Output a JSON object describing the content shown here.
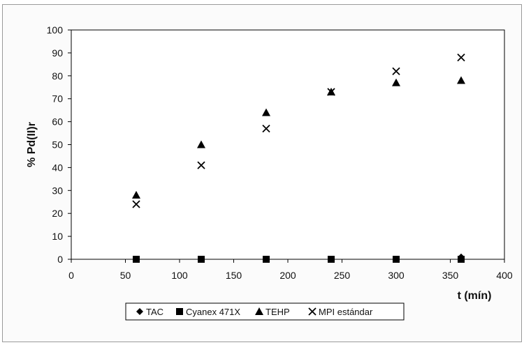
{
  "chart_data": {
    "type": "scatter",
    "title": "",
    "xlabel": "t (mín)",
    "ylabel": "% Pd(II)r",
    "xlim": [
      0,
      400
    ],
    "ylim": [
      0,
      100
    ],
    "xticks": [
      "0",
      "50",
      "100",
      "150",
      "200",
      "250",
      "300",
      "350",
      "400"
    ],
    "yticks": [
      "0",
      "10",
      "20",
      "30",
      "40",
      "50",
      "60",
      "70",
      "80",
      "90",
      "100"
    ],
    "grid": false,
    "legend_position": "bottom",
    "series": [
      {
        "name": "TAC",
        "marker": "diamond",
        "color": "#000000",
        "x": [
          60,
          120,
          180,
          240,
          300,
          360
        ],
        "y": [
          0,
          0,
          0,
          0,
          0,
          1
        ]
      },
      {
        "name": "Cyanex 471X",
        "marker": "square",
        "color": "#000000",
        "x": [
          60,
          120,
          180,
          240,
          300,
          360
        ],
        "y": [
          0,
          0,
          0,
          0,
          0,
          0
        ]
      },
      {
        "name": "TEHP",
        "marker": "triangle",
        "color": "#000000",
        "x": [
          60,
          120,
          180,
          240,
          300,
          360
        ],
        "y": [
          28,
          50,
          64,
          73,
          77,
          78
        ]
      },
      {
        "name": "MPI estándar",
        "marker": "x",
        "color": "#000000",
        "x": [
          60,
          120,
          180,
          240,
          300,
          360
        ],
        "y": [
          24,
          41,
          57,
          73,
          82,
          88
        ]
      }
    ]
  }
}
